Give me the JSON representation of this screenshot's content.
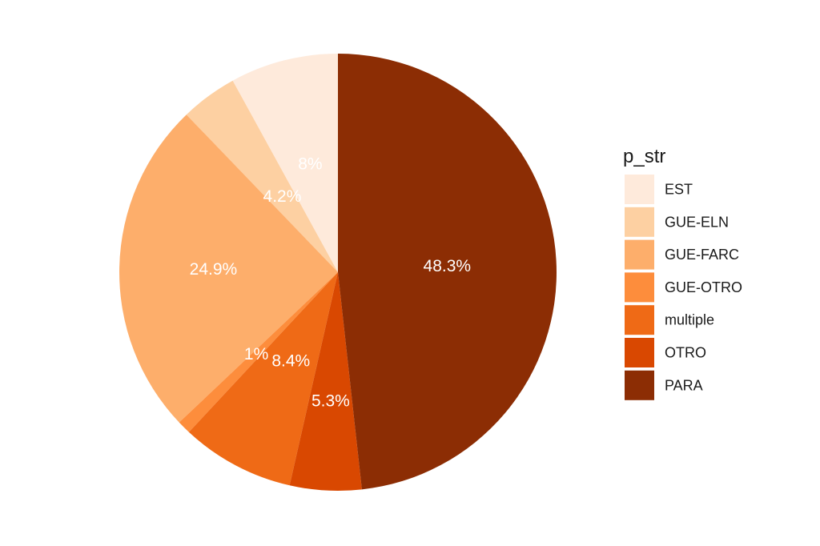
{
  "chart_data": {
    "type": "pie",
    "legend_title": "p_str",
    "legend_position": "right",
    "categories": [
      "EST",
      "GUE-ELN",
      "GUE-FARC",
      "GUE-OTRO",
      "multiple",
      "OTRO",
      "PARA"
    ],
    "values": [
      8.0,
      4.2,
      24.9,
      1.0,
      8.4,
      5.3,
      48.3
    ],
    "labels": [
      "8%",
      "4.2%",
      "24.9%",
      "1%",
      "8.4%",
      "5.3%",
      "48.3%"
    ],
    "colors": [
      "#feeadb",
      "#fdd0a2",
      "#fdae6b",
      "#fd8d3c",
      "#ef6a16",
      "#d94801",
      "#8c2d04"
    ],
    "direction": "counterclockwise from top"
  }
}
